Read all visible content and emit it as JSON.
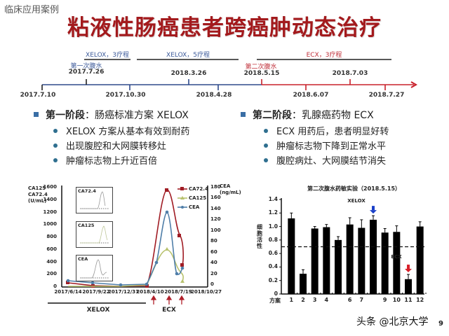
{
  "header": {
    "section_label": "临床应用案例",
    "title": "粘液性肠癌患者跨癌肿动态治疗"
  },
  "timeline": {
    "segments": [
      {
        "label": "XELOX，3疗程",
        "color": "#3c5a9a"
      },
      {
        "label": "XELOX，5疗程",
        "color": "#3c5a9a"
      },
      {
        "label": "ECX，3疗程",
        "color": "#c0303a"
      }
    ],
    "events": [
      {
        "label": "第一次腹水",
        "date": "2017.7.26"
      },
      {
        "label": "第二次腹水",
        "date": "2018.5.15"
      }
    ],
    "dates_above": [
      "2018.3.26",
      "2018.7.03"
    ],
    "dates_below": [
      "2017.7.10",
      "2017.10.30",
      "2018.4.28",
      "2018.6.07",
      "2018.7.27"
    ],
    "colors": {
      "blue": "#2e4a8c",
      "red": "#c8202a",
      "black": "#222222"
    }
  },
  "phase1": {
    "heading": "第一阶段",
    "text": "：肠癌标准方案 XELOX",
    "items": [
      "XELOX 方案从基本有效到耐药",
      "出现腹腔和大网膜转移灶",
      "肿瘤标志物上升近百倍"
    ]
  },
  "phase2": {
    "heading": "第二阶段",
    "text": "：乳腺癌药物 ECX",
    "items": [
      "ECX 用药后，患者明显好转",
      "肿瘤标志物下降到正常水平",
      "腹腔病灶、大网膜结节消失"
    ]
  },
  "chart_data": [
    {
      "type": "line",
      "title": "",
      "left_axis_title": [
        "CA125",
        "CA72.4",
        "(U/mL)"
      ],
      "right_axis_title": [
        "CEA",
        "(ng/mL)"
      ],
      "left_ticks": [
        "1600",
        "1400",
        "1200",
        "1000",
        "800",
        "600",
        "400",
        "200",
        "0"
      ],
      "right_ticks": [
        "180",
        "160",
        "140",
        "120",
        "100",
        "80",
        "60",
        "40",
        "20",
        "0"
      ],
      "ylim_left": [
        0,
        1600
      ],
      "ylim_right": [
        0,
        180
      ],
      "x_tick_labels": [
        "2017/6/14",
        "2017/9/22",
        "2017/12/31",
        "2018/4/10",
        "2018/7/19",
        "2018/10/27"
      ],
      "x": [
        "2017/6/14",
        "2017/9/22",
        "2017/12/31",
        "2018/4/10",
        "2018/5/1",
        "2018/6/1",
        "2018/6/22",
        "2018/7/5",
        "2018/7/26"
      ],
      "series": [
        {
          "name": "CA72.4",
          "axis": "left",
          "color": "#a01c24",
          "marker": "square",
          "values": [
            70,
            30,
            10,
            10,
            null,
            1500,
            880,
            null,
            420
          ]
        },
        {
          "name": "CA125",
          "axis": "left",
          "color": "#b8c26e",
          "marker": "triangle",
          "values": [
            5,
            5,
            5,
            20,
            null,
            600,
            380,
            null,
            200
          ]
        },
        {
          "name": "CEA",
          "axis": "right",
          "color": "#4f7ea8",
          "marker": "diamond",
          "values": [
            12,
            7,
            4,
            4,
            37,
            131,
            23,
            null,
            37
          ]
        }
      ],
      "legend": [
        "CA72.4",
        "CA125",
        "CEA"
      ],
      "legend_position": "top-right",
      "insets": [
        "CA72.4",
        "CA125",
        "CEA"
      ],
      "phase_labels": {
        "xelox": "XELOX",
        "ecx": "ECX"
      },
      "treatment_arrows": 3
    },
    {
      "type": "bar",
      "title": "第二次腹水药敏实验（2018.5.15）",
      "ylabel": "细胞活性",
      "xlabel": "方案",
      "categories": [
        "1",
        "2",
        "3",
        "4",
        "5",
        "6",
        "7",
        "8",
        "9",
        "10",
        "11",
        "12"
      ],
      "x_tick_labels": [
        "1",
        "2",
        "3",
        "4",
        "",
        "6",
        "7",
        "",
        "9",
        "10",
        "11",
        "12"
      ],
      "values": [
        1.12,
        0.3,
        0.97,
        0.99,
        0.8,
        1.03,
        0.98,
        1.1,
        0.91,
        0.92,
        0.22,
        1.0
      ],
      "errors": [
        0.08,
        0.06,
        0.03,
        0.04,
        0.05,
        0.1,
        0.12,
        0.06,
        0.06,
        0.09,
        0.07,
        0.07
      ],
      "ylim": [
        0,
        1.4
      ],
      "y_ticks": [
        "1.4",
        "1.2",
        "1.0",
        "0.8",
        "0.6",
        "0.4",
        "0.2",
        "0"
      ],
      "threshold": 0.7,
      "annotations": [
        {
          "label": "XELOX",
          "bar": 8,
          "arrow_color": "#1a3fc8"
        },
        {
          "label": "ECX",
          "bar": 11,
          "arrow_color": "#d8202a"
        }
      ]
    }
  ],
  "footer": {
    "watermark": "头条 @北京大学",
    "page_number": "9"
  }
}
